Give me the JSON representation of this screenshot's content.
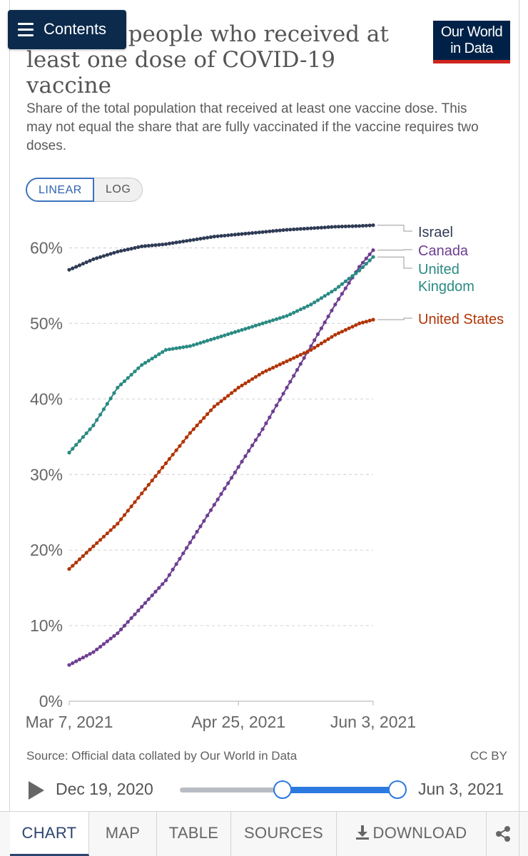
{
  "header": {
    "contents_label": "Contents",
    "title": "Share of people who received at least one dose of COVID-19 vaccine",
    "subtitle": "Share of the total population that received at least one vaccine dose. This may not equal the share that are fully vaccinated if the vaccine requires two doses.",
    "logo_line1": "Our World",
    "logo_line2": "in Data",
    "logo_bg": "#002147",
    "logo_accent": "#ce261e"
  },
  "scale_toggle": {
    "linear_label": "LINEAR",
    "log_label": "LOG",
    "selected": "LINEAR"
  },
  "chart_data": {
    "type": "line",
    "title": "Share of people who received at least one dose of COVID-19 vaccine",
    "xlabel": "",
    "ylabel": "",
    "x_ticks": [
      "Mar 7, 2021",
      "Apr 25, 2021",
      "Jun 3, 2021"
    ],
    "x_range": [
      "2021-03-07",
      "2021-06-03"
    ],
    "y_ticks": [
      "0%",
      "10%",
      "20%",
      "30%",
      "40%",
      "50%",
      "60%"
    ],
    "ylim": [
      0,
      60
    ],
    "grid": "horizontal dashed",
    "legend": "right, labels at line ends",
    "series": [
      {
        "name": "Israel",
        "color": "#2f3b55",
        "points": [
          [
            "2021-03-07",
            57.1
          ],
          [
            "2021-03-14",
            58.5
          ],
          [
            "2021-03-21",
            59.5
          ],
          [
            "2021-03-28",
            60.2
          ],
          [
            "2021-04-04",
            60.5
          ],
          [
            "2021-04-11",
            61.0
          ],
          [
            "2021-04-18",
            61.5
          ],
          [
            "2021-04-25",
            61.8
          ],
          [
            "2021-05-02",
            62.1
          ],
          [
            "2021-05-09",
            62.4
          ],
          [
            "2021-05-16",
            62.6
          ],
          [
            "2021-05-23",
            62.8
          ],
          [
            "2021-05-30",
            62.9
          ],
          [
            "2021-06-03",
            63.0
          ]
        ]
      },
      {
        "name": "Canada",
        "color": "#6d3e91",
        "points": [
          [
            "2021-03-07",
            4.8
          ],
          [
            "2021-03-14",
            6.5
          ],
          [
            "2021-03-21",
            9.0
          ],
          [
            "2021-03-28",
            12.5
          ],
          [
            "2021-04-04",
            16.0
          ],
          [
            "2021-04-11",
            21.0
          ],
          [
            "2021-04-18",
            26.0
          ],
          [
            "2021-04-25",
            31.0
          ],
          [
            "2021-05-02",
            36.0
          ],
          [
            "2021-05-09",
            41.5
          ],
          [
            "2021-05-16",
            47.0
          ],
          [
            "2021-05-23",
            52.5
          ],
          [
            "2021-05-30",
            57.5
          ],
          [
            "2021-06-03",
            59.7
          ]
        ]
      },
      {
        "name": "United Kingdom",
        "color": "#2a8a83",
        "points": [
          [
            "2021-03-07",
            32.9
          ],
          [
            "2021-03-14",
            36.5
          ],
          [
            "2021-03-21",
            41.5
          ],
          [
            "2021-03-28",
            44.5
          ],
          [
            "2021-04-04",
            46.5
          ],
          [
            "2021-04-11",
            47.0
          ],
          [
            "2021-04-18",
            48.0
          ],
          [
            "2021-04-25",
            49.0
          ],
          [
            "2021-05-02",
            50.0
          ],
          [
            "2021-05-09",
            51.0
          ],
          [
            "2021-05-16",
            52.5
          ],
          [
            "2021-05-23",
            54.5
          ],
          [
            "2021-05-30",
            57.0
          ],
          [
            "2021-06-03",
            58.8
          ]
        ]
      },
      {
        "name": "United States",
        "color": "#b13507",
        "points": [
          [
            "2021-03-07",
            17.5
          ],
          [
            "2021-03-14",
            20.5
          ],
          [
            "2021-03-21",
            23.5
          ],
          [
            "2021-03-28",
            27.5
          ],
          [
            "2021-04-04",
            31.5
          ],
          [
            "2021-04-11",
            35.5
          ],
          [
            "2021-04-18",
            39.0
          ],
          [
            "2021-04-25",
            41.5
          ],
          [
            "2021-05-02",
            43.5
          ],
          [
            "2021-05-09",
            45.0
          ],
          [
            "2021-05-16",
            46.5
          ],
          [
            "2021-05-23",
            48.5
          ],
          [
            "2021-05-30",
            50.0
          ],
          [
            "2021-06-03",
            50.5
          ]
        ]
      }
    ],
    "series_labels": {
      "Israel": [
        "Israel"
      ],
      "Canada": [
        "Canada"
      ],
      "United Kingdom": [
        "United",
        "Kingdom"
      ],
      "United States": [
        "United States"
      ]
    }
  },
  "footer": {
    "source": "Source: Official data collated by Our World in Data",
    "license": "CC BY"
  },
  "timeline": {
    "start_label": "Dec 19, 2020",
    "end_label": "Jun 3, 2021",
    "range_start": "Mar 7, 2021",
    "range_end": "Jun 3, 2021"
  },
  "tabs": {
    "chart": "CHART",
    "map": "MAP",
    "table": "TABLE",
    "sources": "SOURCES",
    "download": "DOWNLOAD",
    "active": "CHART"
  }
}
